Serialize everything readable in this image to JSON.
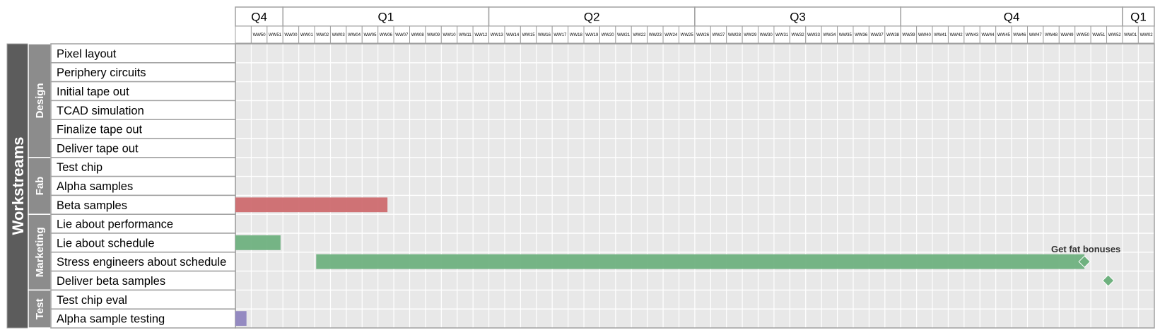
{
  "chart_data": {
    "type": "gantt",
    "super_group": "Workstreams",
    "quarters": [
      {
        "label": "Q4",
        "start": 0,
        "span": 3
      },
      {
        "label": "Q1",
        "start": 3,
        "span": 13
      },
      {
        "label": "Q2",
        "start": 16,
        "span": 13
      },
      {
        "label": "Q3",
        "start": 29,
        "span": 13
      },
      {
        "label": "Q4",
        "start": 42,
        "span": 14
      },
      {
        "label": "Q1",
        "start": 56,
        "span": 2.6
      }
    ],
    "weeks": [
      "",
      "WW50",
      "WW51",
      "WW00",
      "WW01",
      "WW02",
      "WW03",
      "WW04",
      "WW05",
      "WW06",
      "WW07",
      "WW08",
      "WW09",
      "WW10",
      "WW11",
      "WW12",
      "WW13",
      "WW14",
      "WW15",
      "WW16",
      "WW17",
      "WW18",
      "WW19",
      "WW20",
      "WW21",
      "WW22",
      "WW23",
      "WW24",
      "WW25",
      "WW26",
      "WW27",
      "WW28",
      "WW29",
      "WW30",
      "WW31",
      "WW32",
      "WW33",
      "WW34",
      "WW35",
      "WW36",
      "WW37",
      "WW38",
      "WW39",
      "WW40",
      "WW41",
      "WW42",
      "WW43",
      "WW44",
      "WW45",
      "WW46",
      "WW47",
      "WW48",
      "WW49",
      "WW50",
      "WW51",
      "WW52",
      "WW01",
      "WW02",
      ""
    ],
    "groups": [
      {
        "name": "Design",
        "tasks": [
          "Pixel layout",
          "Periphery circuits",
          "Initial tape out",
          "TCAD simulation",
          "Finalize tape out",
          "Deliver tape out"
        ]
      },
      {
        "name": "Fab",
        "tasks": [
          "Test chip",
          "Alpha samples",
          "Beta samples"
        ]
      },
      {
        "name": "Marketing",
        "tasks": [
          "Lie about performance",
          "Lie about schedule",
          "Stress engineers about schedule",
          "Deliver beta samples"
        ]
      },
      {
        "name": "Test",
        "tasks": [
          "Test chip eval",
          "Alpha sample testing"
        ]
      }
    ],
    "bars": [
      {
        "task": "Beta samples",
        "start": 0,
        "end": 9.6,
        "color": "#cd6b6f"
      },
      {
        "task": "Lie about schedule",
        "start": 0,
        "end": 2.85,
        "color": "#6fb17f"
      },
      {
        "task": "Stress engineers about schedule",
        "start": 5.1,
        "end": 53.6,
        "color": "#6fb17f"
      },
      {
        "task": "Alpha sample testing",
        "start": 0,
        "end": 0.7,
        "color": "#8f85bf"
      }
    ],
    "milestones": [
      {
        "task": "Stress engineers about schedule",
        "at": 53.6,
        "color": "#6fb17f",
        "label": "Get fat bonuses"
      },
      {
        "task": "Deliver beta samples",
        "at": 55.1,
        "color": "#6fb17f",
        "label": ""
      }
    ],
    "colors": {
      "grid_background": "#e8e8e8",
      "grid_line": "#ffffff",
      "border": "#a0a0a0",
      "super_group_fill": "#5c5c5c",
      "group_fill": "#8c8c8c",
      "label_cell_fill": "#ffffff"
    }
  }
}
